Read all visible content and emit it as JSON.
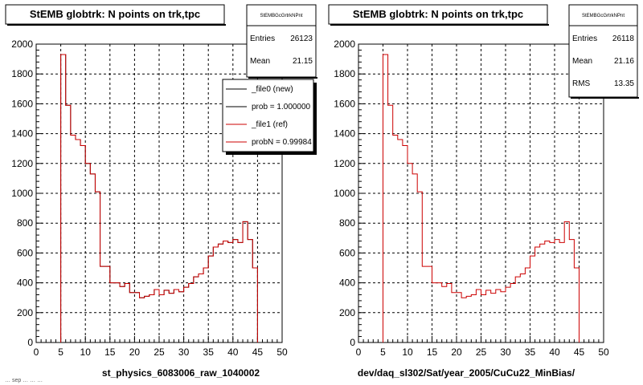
{
  "footer": "… sep  …  …  …",
  "chart_data": [
    {
      "type": "histogram",
      "title": "StEMB globtrk: N points on trk,tpc",
      "xlabel": "st_physics_6083006_raw_1040002",
      "ylabel": "",
      "xlim": [
        0,
        50
      ],
      "ylim": [
        0,
        2000
      ],
      "xticks": [
        0,
        5,
        10,
        15,
        20,
        25,
        30,
        35,
        40,
        45,
        50
      ],
      "yticks": [
        0,
        200,
        400,
        600,
        800,
        1000,
        1200,
        1400,
        1600,
        1800,
        2000
      ],
      "grid": true,
      "bin_width": 1,
      "stats": {
        "name": "StEMBGcGrtrkNPnt",
        "entries_label": "Entries",
        "entries": "26123",
        "mean_label": "Mean",
        "mean": "21.15"
      },
      "legend": {
        "placement": "top-right",
        "entries": [
          {
            "label": "_file0 (new)",
            "color": "#000000"
          },
          {
            "label": "prob = 1.000000",
            "color": "#000000"
          },
          {
            "label": "_file1 (ref)",
            "color": "#cc0000"
          },
          {
            "label": "probN = 0.99984",
            "color": "#cc0000"
          }
        ]
      },
      "series": [
        {
          "name": "_file0 (new)",
          "color": "#000000",
          "x": [
            5,
            6,
            7,
            8,
            9,
            10,
            11,
            12,
            13,
            14,
            15,
            16,
            17,
            18,
            19,
            20,
            21,
            22,
            23,
            24,
            25,
            26,
            27,
            28,
            29,
            30,
            31,
            32,
            33,
            34,
            35,
            36,
            37,
            38,
            39,
            40,
            41,
            42,
            43,
            44
          ],
          "values": [
            1930,
            1590,
            1390,
            1360,
            1320,
            1200,
            1130,
            1010,
            510,
            510,
            400,
            400,
            375,
            395,
            335,
            335,
            300,
            310,
            320,
            355,
            320,
            350,
            330,
            355,
            340,
            370,
            395,
            440,
            460,
            500,
            580,
            640,
            660,
            680,
            670,
            690,
            670,
            810,
            690,
            500
          ]
        },
        {
          "name": "_file1 (ref)",
          "color": "#cc0000",
          "x": [
            5,
            6,
            7,
            8,
            9,
            10,
            11,
            12,
            13,
            14,
            15,
            16,
            17,
            18,
            19,
            20,
            21,
            22,
            23,
            24,
            25,
            26,
            27,
            28,
            29,
            30,
            31,
            32,
            33,
            34,
            35,
            36,
            37,
            38,
            39,
            40,
            41,
            42,
            43,
            44
          ],
          "values": [
            1930,
            1590,
            1390,
            1360,
            1320,
            1200,
            1130,
            1010,
            510,
            510,
            400,
            400,
            375,
            395,
            335,
            335,
            300,
            310,
            320,
            355,
            320,
            350,
            330,
            355,
            340,
            370,
            395,
            440,
            460,
            500,
            580,
            640,
            660,
            680,
            670,
            690,
            670,
            810,
            690,
            500
          ]
        }
      ]
    },
    {
      "type": "histogram",
      "title": "StEMB globtrk: N points on trk,tpc",
      "xlabel": "dev/daq_sl302/Sat/year_2005/CuCu22_MinBias/",
      "ylabel": "",
      "xlim": [
        0,
        50
      ],
      "ylim": [
        0,
        2000
      ],
      "xticks": [
        0,
        5,
        10,
        15,
        20,
        25,
        30,
        35,
        40,
        45,
        50
      ],
      "yticks": [
        0,
        200,
        400,
        600,
        800,
        1000,
        1200,
        1400,
        1600,
        1800,
        2000
      ],
      "grid": true,
      "bin_width": 1,
      "stats": {
        "name": "StEMBGcGrtrkNPnt",
        "entries_label": "Entries",
        "entries": "26118",
        "mean_label": "Mean",
        "mean": "21.16",
        "rms_label": "RMS",
        "rms": "13.35"
      },
      "series": [
        {
          "name": "",
          "color": "#cc0000",
          "x": [
            5,
            6,
            7,
            8,
            9,
            10,
            11,
            12,
            13,
            14,
            15,
            16,
            17,
            18,
            19,
            20,
            21,
            22,
            23,
            24,
            25,
            26,
            27,
            28,
            29,
            30,
            31,
            32,
            33,
            34,
            35,
            36,
            37,
            38,
            39,
            40,
            41,
            42,
            43,
            44
          ],
          "values": [
            1930,
            1590,
            1390,
            1360,
            1320,
            1200,
            1130,
            1010,
            510,
            510,
            400,
            400,
            375,
            395,
            335,
            335,
            300,
            310,
            320,
            355,
            320,
            350,
            330,
            355,
            340,
            370,
            395,
            440,
            460,
            500,
            580,
            640,
            660,
            680,
            670,
            690,
            670,
            810,
            690,
            500
          ]
        }
      ]
    }
  ]
}
